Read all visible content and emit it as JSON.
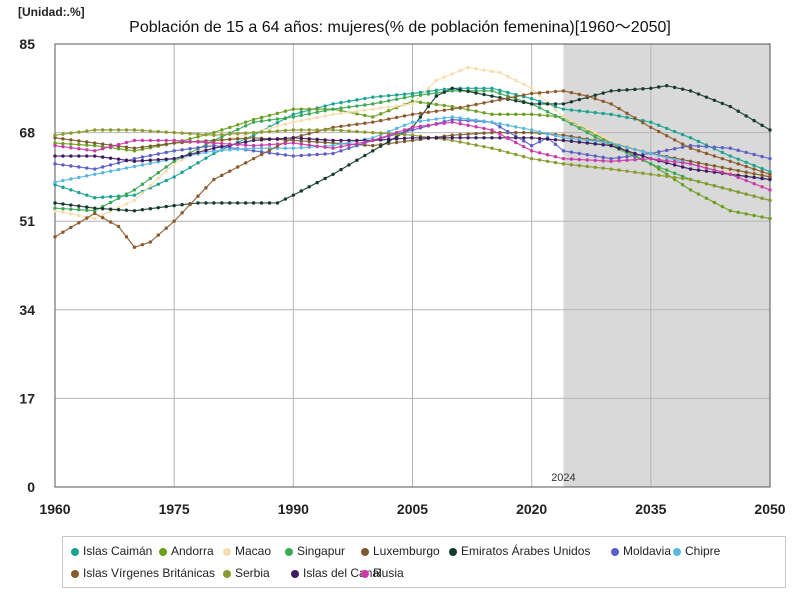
{
  "chart_data": {
    "type": "line",
    "title": "Población de 15 a 64 años: mujeres(% de población femenina)[1960～2050]",
    "unit_label": "[Unidad:.%]",
    "xlabel": "",
    "ylabel": "",
    "xlim": [
      1960,
      2050
    ],
    "ylim": [
      0,
      85
    ],
    "x_ticks": [
      1960,
      1975,
      1990,
      2005,
      2020,
      2035,
      2050
    ],
    "y_ticks": [
      0,
      17,
      34,
      51,
      68,
      85
    ],
    "forecast_start": 2024,
    "forecast_label": "2024",
    "series": [
      {
        "name": "Islas Caimán",
        "color": "#1aa391",
        "points": [
          [
            1960,
            58
          ],
          [
            1965,
            55.5
          ],
          [
            1970,
            56
          ],
          [
            1975,
            59.5
          ],
          [
            1980,
            64
          ],
          [
            1985,
            67.5
          ],
          [
            1990,
            71.5
          ],
          [
            1995,
            73.5
          ],
          [
            2000,
            74.8
          ],
          [
            2005,
            75.5
          ],
          [
            2010,
            76.5
          ],
          [
            2015,
            76.5
          ],
          [
            2020,
            74.5
          ],
          [
            2024,
            72.5
          ],
          [
            2030,
            71.5
          ],
          [
            2035,
            70
          ],
          [
            2040,
            67
          ],
          [
            2045,
            63.5
          ],
          [
            2050,
            60.5
          ]
        ]
      },
      {
        "name": "Andorra",
        "color": "#6aa01e",
        "points": [
          [
            1960,
            66
          ],
          [
            1965,
            65.5
          ],
          [
            1970,
            64.5
          ],
          [
            1975,
            66
          ],
          [
            1980,
            68
          ],
          [
            1985,
            70.5
          ],
          [
            1990,
            72.5
          ],
          [
            1995,
            72.5
          ],
          [
            2000,
            71
          ],
          [
            2005,
            74
          ],
          [
            2010,
            73
          ],
          [
            2015,
            71.5
          ],
          [
            2020,
            71.5
          ],
          [
            2024,
            71
          ],
          [
            2030,
            66
          ],
          [
            2035,
            62
          ],
          [
            2040,
            57
          ],
          [
            2045,
            53
          ],
          [
            2050,
            51.5
          ]
        ]
      },
      {
        "name": "Macao",
        "color": "#f5deb0",
        "points": [
          [
            1960,
            53
          ],
          [
            1965,
            51.5
          ],
          [
            1970,
            55
          ],
          [
            1975,
            62
          ],
          [
            1980,
            66
          ],
          [
            1985,
            68
          ],
          [
            1990,
            70
          ],
          [
            1995,
            71.5
          ],
          [
            2000,
            72.5
          ],
          [
            2005,
            73.5
          ],
          [
            2008,
            78
          ],
          [
            2012,
            80.5
          ],
          [
            2016,
            79.5
          ],
          [
            2020,
            76.5
          ],
          [
            2024,
            71
          ],
          [
            2030,
            66.5
          ],
          [
            2035,
            64
          ],
          [
            2040,
            62
          ],
          [
            2045,
            60.5
          ],
          [
            2050,
            59.5
          ]
        ]
      },
      {
        "name": "Singapur",
        "color": "#3ba855",
        "points": [
          [
            1960,
            53.5
          ],
          [
            1965,
            53
          ],
          [
            1970,
            57
          ],
          [
            1975,
            62.5
          ],
          [
            1980,
            66.5
          ],
          [
            1985,
            70
          ],
          [
            1990,
            71
          ],
          [
            1995,
            72.5
          ],
          [
            2000,
            73.5
          ],
          [
            2005,
            75
          ],
          [
            2010,
            76
          ],
          [
            2015,
            76
          ],
          [
            2020,
            73.5
          ],
          [
            2024,
            70.5
          ],
          [
            2030,
            65.5
          ],
          [
            2035,
            62
          ],
          [
            2040,
            59
          ],
          [
            2045,
            57
          ],
          [
            2050,
            55
          ]
        ]
      },
      {
        "name": "Luxemburgo",
        "color": "#7c5a2e",
        "points": [
          [
            1960,
            67
          ],
          [
            1965,
            66
          ],
          [
            1970,
            65
          ],
          [
            1975,
            66
          ],
          [
            1980,
            66.5
          ],
          [
            1985,
            67
          ],
          [
            1990,
            66.5
          ],
          [
            1995,
            66
          ],
          [
            2000,
            65.5
          ],
          [
            2005,
            66.5
          ],
          [
            2010,
            67.5
          ],
          [
            2015,
            68
          ],
          [
            2020,
            68
          ],
          [
            2024,
            67.5
          ],
          [
            2030,
            66
          ],
          [
            2035,
            64
          ],
          [
            2040,
            62.5
          ],
          [
            2045,
            61
          ],
          [
            2050,
            59.5
          ]
        ]
      },
      {
        "name": "Emiratos Árabes Unidos",
        "color": "#143b2c",
        "points": [
          [
            1960,
            54.5
          ],
          [
            1965,
            53.5
          ],
          [
            1970,
            53
          ],
          [
            1975,
            54
          ],
          [
            1978,
            54.5
          ],
          [
            1985,
            54.5
          ],
          [
            1988,
            54.5
          ],
          [
            1990,
            56
          ],
          [
            1995,
            60
          ],
          [
            2000,
            64.5
          ],
          [
            2005,
            69
          ],
          [
            2008,
            75
          ],
          [
            2010,
            76.5
          ],
          [
            2015,
            75
          ],
          [
            2020,
            73.5
          ],
          [
            2024,
            73.5
          ],
          [
            2030,
            76
          ],
          [
            2035,
            76.5
          ],
          [
            2037,
            77
          ],
          [
            2040,
            76
          ],
          [
            2045,
            73
          ],
          [
            2050,
            68.5
          ]
        ]
      },
      {
        "name": "Moldavia",
        "color": "#5b5fc7",
        "points": [
          [
            1960,
            62
          ],
          [
            1965,
            61
          ],
          [
            1970,
            63
          ],
          [
            1975,
            64.5
          ],
          [
            1980,
            65.5
          ],
          [
            1985,
            64.5
          ],
          [
            1990,
            63.5
          ],
          [
            1995,
            64
          ],
          [
            2000,
            66.5
          ],
          [
            2005,
            68.5
          ],
          [
            2010,
            70.5
          ],
          [
            2015,
            70
          ],
          [
            2020,
            65.5
          ],
          [
            2022,
            67
          ],
          [
            2024,
            64.5
          ],
          [
            2030,
            63
          ],
          [
            2035,
            64
          ],
          [
            2040,
            65.5
          ],
          [
            2045,
            65
          ],
          [
            2050,
            63
          ]
        ]
      },
      {
        "name": "Chipre",
        "color": "#5ab8e0",
        "points": [
          [
            1960,
            58.5
          ],
          [
            1965,
            60
          ],
          [
            1970,
            61.5
          ],
          [
            1975,
            63
          ],
          [
            1980,
            64.5
          ],
          [
            1985,
            65
          ],
          [
            1990,
            65
          ],
          [
            1995,
            65.5
          ],
          [
            2000,
            67
          ],
          [
            2005,
            70
          ],
          [
            2010,
            71
          ],
          [
            2015,
            70
          ],
          [
            2020,
            68.5
          ],
          [
            2024,
            67
          ],
          [
            2030,
            66
          ],
          [
            2035,
            64
          ],
          [
            2040,
            62
          ],
          [
            2045,
            60
          ],
          [
            2050,
            59
          ]
        ]
      },
      {
        "name": "Islas Vírgenes Británicas",
        "color": "#8b5a2b",
        "points": [
          [
            1960,
            48
          ],
          [
            1965,
            52.5
          ],
          [
            1968,
            50
          ],
          [
            1970,
            46
          ],
          [
            1972,
            47
          ],
          [
            1975,
            51
          ],
          [
            1980,
            59
          ],
          [
            1985,
            63
          ],
          [
            1990,
            67
          ],
          [
            1995,
            69
          ],
          [
            2000,
            70
          ],
          [
            2005,
            71.5
          ],
          [
            2010,
            72.5
          ],
          [
            2015,
            74
          ],
          [
            2020,
            75.5
          ],
          [
            2024,
            76
          ],
          [
            2027,
            75
          ],
          [
            2030,
            73.5
          ],
          [
            2035,
            69
          ],
          [
            2040,
            65
          ],
          [
            2045,
            62.5
          ],
          [
            2050,
            60
          ]
        ]
      },
      {
        "name": "Serbia",
        "color": "#8a9a2e",
        "points": [
          [
            1960,
            67.5
          ],
          [
            1965,
            68.5
          ],
          [
            1970,
            68.5
          ],
          [
            1975,
            68
          ],
          [
            1980,
            67.5
          ],
          [
            1985,
            68
          ],
          [
            1990,
            68.5
          ],
          [
            1995,
            68.5
          ],
          [
            2000,
            68
          ],
          [
            2005,
            67.5
          ],
          [
            2010,
            66.5
          ],
          [
            2015,
            65
          ],
          [
            2020,
            63
          ],
          [
            2024,
            62
          ],
          [
            2030,
            61
          ],
          [
            2035,
            60
          ],
          [
            2040,
            59
          ],
          [
            2045,
            57
          ],
          [
            2050,
            55
          ]
        ]
      },
      {
        "name": "Islas del Canal",
        "color": "#3d1a5e",
        "points": [
          [
            1960,
            63.5
          ],
          [
            1965,
            63.5
          ],
          [
            1970,
            62.5
          ],
          [
            1975,
            63
          ],
          [
            1980,
            65
          ],
          [
            1985,
            66.5
          ],
          [
            1990,
            67
          ],
          [
            1995,
            66.5
          ],
          [
            2000,
            66.5
          ],
          [
            2005,
            67
          ],
          [
            2010,
            67
          ],
          [
            2015,
            67
          ],
          [
            2020,
            67
          ],
          [
            2024,
            66.5
          ],
          [
            2030,
            65.5
          ],
          [
            2035,
            63
          ],
          [
            2040,
            61
          ],
          [
            2045,
            60
          ],
          [
            2050,
            59
          ]
        ]
      },
      {
        "name": "Rusia",
        "color": "#cc3aa8",
        "points": [
          [
            1960,
            65.5
          ],
          [
            1965,
            64.5
          ],
          [
            1970,
            66.5
          ],
          [
            1975,
            66.5
          ],
          [
            1980,
            66
          ],
          [
            1985,
            65.5
          ],
          [
            1990,
            66
          ],
          [
            1995,
            65
          ],
          [
            2000,
            66.5
          ],
          [
            2005,
            69
          ],
          [
            2010,
            70
          ],
          [
            2015,
            68.5
          ],
          [
            2020,
            64.5
          ],
          [
            2024,
            63
          ],
          [
            2030,
            62.5
          ],
          [
            2035,
            63
          ],
          [
            2040,
            62
          ],
          [
            2045,
            60
          ],
          [
            2050,
            57
          ]
        ]
      }
    ]
  }
}
